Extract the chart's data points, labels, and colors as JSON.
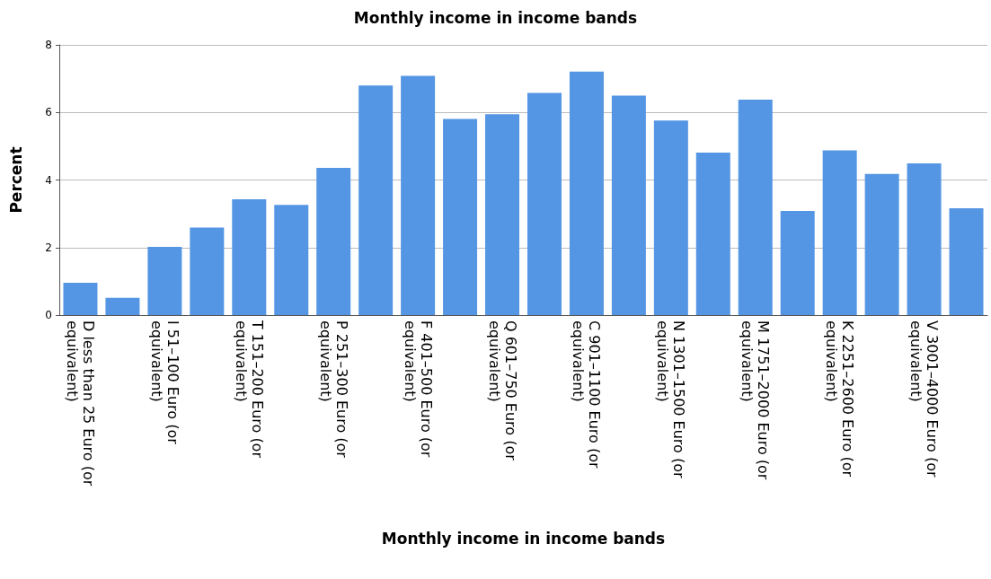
{
  "chart_data": {
    "type": "bar",
    "title": "Monthly income in income bands",
    "xlabel": "Monthly income in income bands",
    "ylabel": "Percent",
    "categories": [
      "D less than 25 Euro (or equivalent)",
      null,
      "I 51–100 Euro (or equivalent)",
      null,
      "T 151–200 Euro (or equivalent)",
      null,
      "P 251–300 Euro (or equivalent)",
      null,
      "F 401–500 Euro (or equivalent)",
      null,
      "Q 601–750 Euro (or equivalent)",
      null,
      "C 901–1100 Euro (or equivalent)",
      null,
      "N 1301–1500 Euro (or equivalent)",
      null,
      "M 1751–2000 Euro (or equivalent)",
      null,
      "K 2251–2600 Euro (or equivalent)",
      null,
      "V 3001–4000 Euro (or equivalent)",
      null
    ],
    "values": [
      0.96,
      0.51,
      2.02,
      2.59,
      3.43,
      3.26,
      4.36,
      6.8,
      7.08,
      5.81,
      5.95,
      6.58,
      7.21,
      6.5,
      5.76,
      4.81,
      6.38,
      3.08,
      4.88,
      4.18,
      4.49,
      3.16
    ],
    "color": "#5596e4",
    "ylim": [
      0,
      8
    ],
    "yticks": [
      0,
      2,
      4,
      6,
      8
    ],
    "grid": "y"
  }
}
